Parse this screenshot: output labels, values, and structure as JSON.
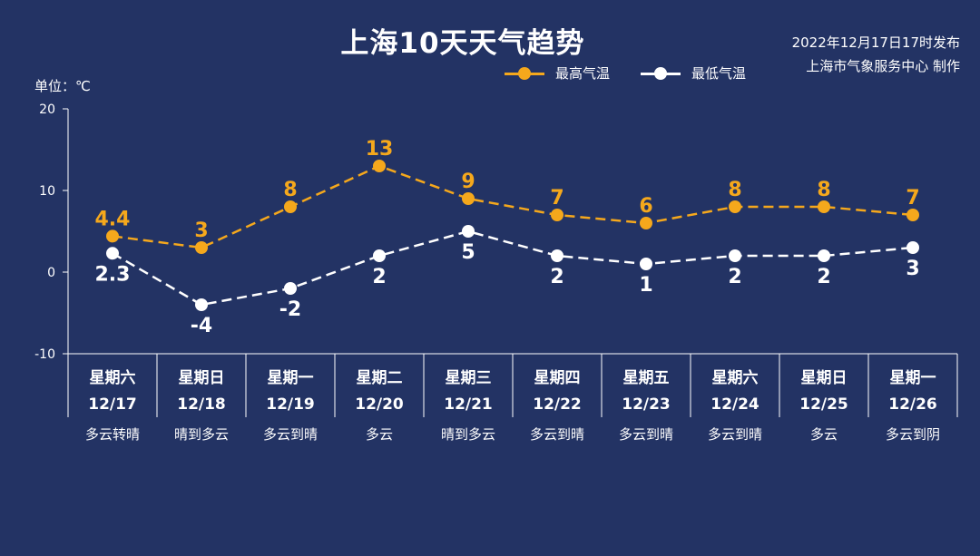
{
  "header": {
    "title": "上海10天天气趋势",
    "publish_time": "2022年12月17日17时发布",
    "publisher": "上海市气象服务中心 制作",
    "unit_label": "单位：℃"
  },
  "colors": {
    "background": "#233364",
    "high_series": "#f5a81c",
    "low_series": "#ffffff",
    "axis": "#ffffff"
  },
  "chart_data": {
    "type": "line",
    "ylim": [
      -10,
      20
    ],
    "yticks": [
      "20",
      "10",
      "0",
      "-10"
    ],
    "ytick_values": [
      20,
      10,
      0,
      -10
    ],
    "grid": false,
    "legend_position": "top-center",
    "categories": [
      {
        "weekday": "星期六",
        "date": "12/17",
        "weather": "多云转晴"
      },
      {
        "weekday": "星期日",
        "date": "12/18",
        "weather": "晴到多云"
      },
      {
        "weekday": "星期一",
        "date": "12/19",
        "weather": "多云到晴"
      },
      {
        "weekday": "星期二",
        "date": "12/20",
        "weather": "多云"
      },
      {
        "weekday": "星期三",
        "date": "12/21",
        "weather": "晴到多云"
      },
      {
        "weekday": "星期四",
        "date": "12/22",
        "weather": "多云到晴"
      },
      {
        "weekday": "星期五",
        "date": "12/23",
        "weather": "多云到晴"
      },
      {
        "weekday": "星期六",
        "date": "12/24",
        "weather": "多云到晴"
      },
      {
        "weekday": "星期日",
        "date": "12/25",
        "weather": "多云"
      },
      {
        "weekday": "星期一",
        "date": "12/26",
        "weather": "多云到阴"
      }
    ],
    "series": [
      {
        "name": "最高气温",
        "values": [
          4.4,
          3,
          8,
          13,
          9,
          7,
          6,
          8,
          8,
          7
        ],
        "labels": [
          "4.4",
          "3",
          "8",
          "13",
          "9",
          "7",
          "6",
          "8",
          "8",
          "7"
        ]
      },
      {
        "name": "最低气温",
        "values": [
          2.3,
          -4,
          -2,
          2,
          5,
          2,
          1,
          2,
          2,
          3
        ],
        "labels": [
          "2.3",
          "-4",
          "-2",
          "2",
          "5",
          "2",
          "1",
          "2",
          "2",
          "3"
        ]
      }
    ]
  }
}
